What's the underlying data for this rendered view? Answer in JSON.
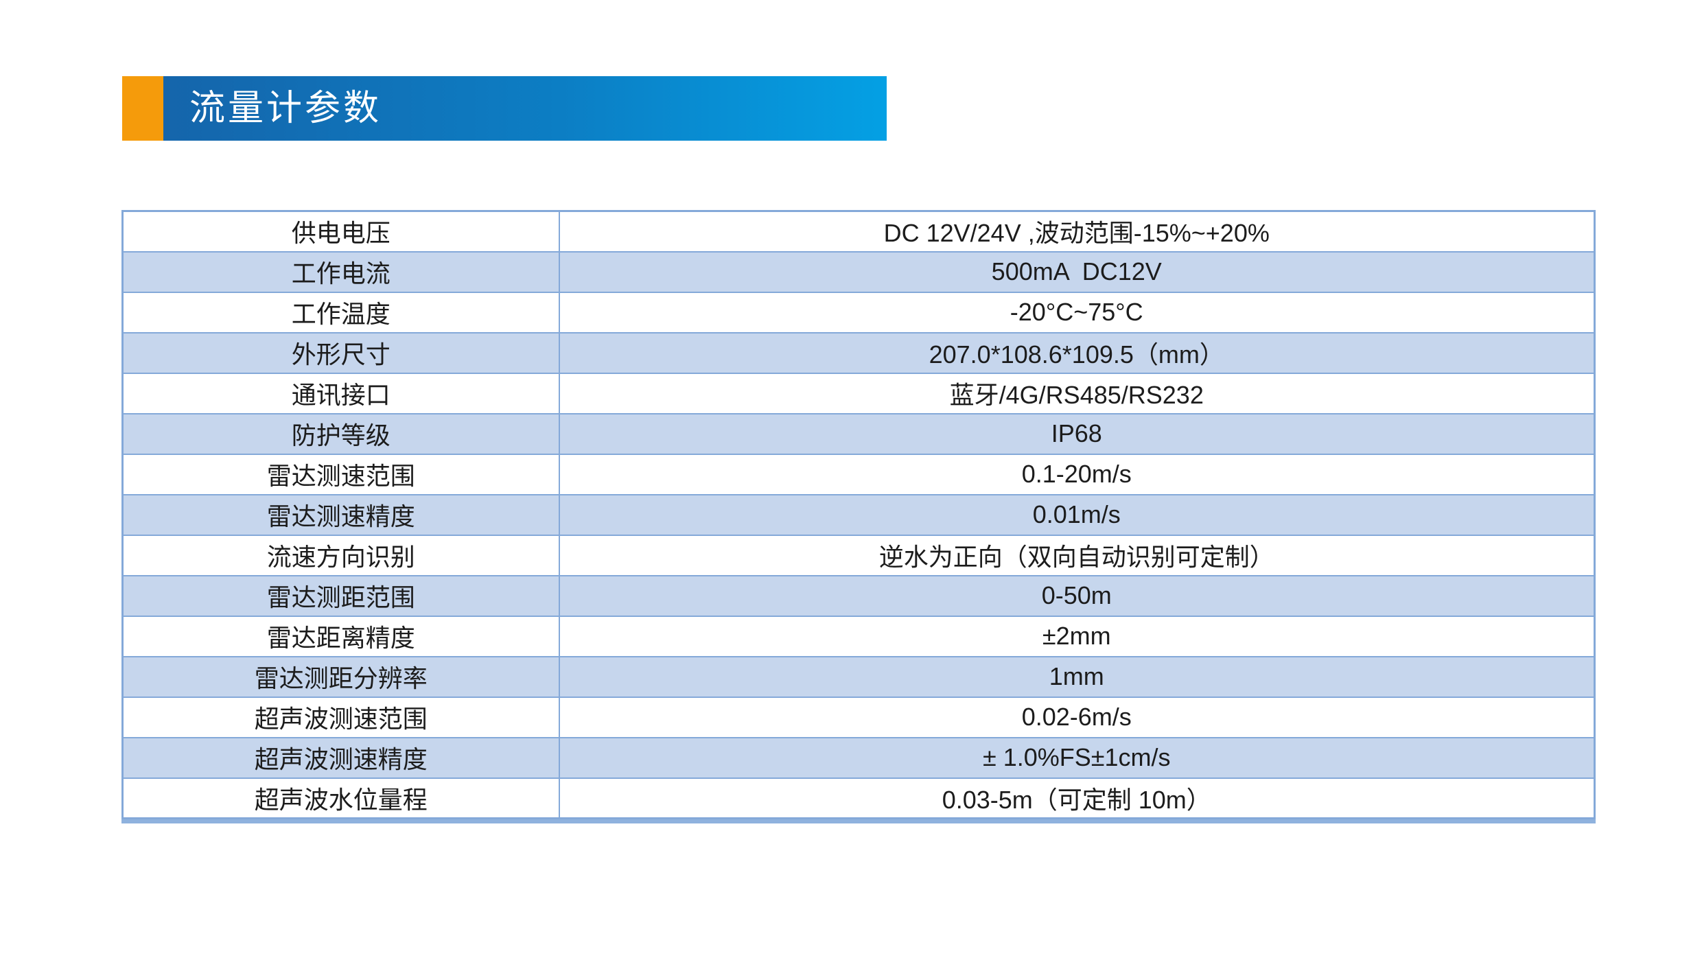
{
  "header": {
    "title": "流量计参数"
  },
  "colors": {
    "accent-orange": "#F59B0B",
    "banner-left": "#1565AB",
    "banner-right": "#04A0E4",
    "table-border": "#84A9D9",
    "row-alt": "#C6D6ED",
    "text": "#1C1C1C",
    "title-text": "#FFFFFF"
  },
  "table": {
    "rows": [
      {
        "label": "供电电压",
        "value": "DC 12V/24V ,波动范围-15%~+20%"
      },
      {
        "label": "工作电流",
        "value": "500mA  DC12V"
      },
      {
        "label": "工作温度",
        "value": "-20°C~75°C"
      },
      {
        "label": "外形尺寸",
        "value": "207.0*108.6*109.5（mm）"
      },
      {
        "label": "通讯接口",
        "value": "蓝牙/4G/RS485/RS232"
      },
      {
        "label": "防护等级",
        "value": "IP68"
      },
      {
        "label": "雷达测速范围",
        "value": "0.1-20m/s"
      },
      {
        "label": "雷达测速精度",
        "value": "0.01m/s"
      },
      {
        "label": "流速方向识别",
        "value": "逆水为正向（双向自动识别可定制）"
      },
      {
        "label": "雷达测距范围",
        "value": "0-50m"
      },
      {
        "label": "雷达距离精度",
        "value": "±2mm"
      },
      {
        "label": "雷达测距分辨率",
        "value": "1mm"
      },
      {
        "label": "超声波测速范围",
        "value": "0.02-6m/s"
      },
      {
        "label": "超声波测速精度",
        "value": "± 1.0%FS±1cm/s"
      },
      {
        "label": "超声波水位量程",
        "value": "0.03-5m（可定制 10m）"
      }
    ]
  }
}
